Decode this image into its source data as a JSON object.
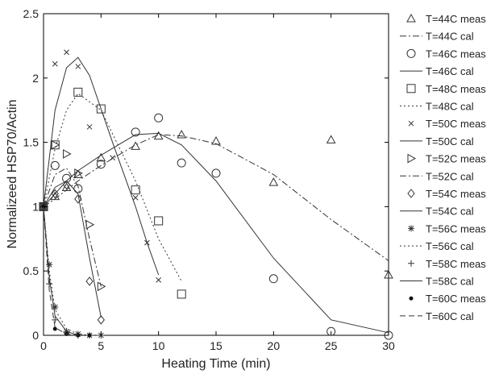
{
  "chart_data": {
    "type": "line",
    "title": "",
    "xlabel": "Heating Time (min)",
    "ylabel": "Normalizeed HSP70/Actin",
    "xlim": [
      0,
      30
    ],
    "ylim": [
      0,
      2.5
    ],
    "xticks": [
      0,
      5,
      10,
      15,
      20,
      25,
      30
    ],
    "yticks": [
      0,
      0.5,
      1,
      1.5,
      2,
      2.5
    ],
    "grid": false,
    "legend_position": "right-outside",
    "series": [
      {
        "name": "T=44C meas",
        "kind": "meas",
        "marker": "triangle",
        "x": [
          0,
          1,
          2,
          3,
          5,
          8,
          10,
          12,
          15,
          20,
          25,
          30
        ],
        "y": [
          1.0,
          1.08,
          1.15,
          1.25,
          1.38,
          1.47,
          1.55,
          1.56,
          1.51,
          1.19,
          1.52,
          0.47
        ]
      },
      {
        "name": "T=44C cal",
        "kind": "cal",
        "dash": "dashdot",
        "x": [
          0,
          1,
          2,
          3,
          5,
          8,
          10,
          12,
          15,
          20,
          25,
          30
        ],
        "y": [
          1.0,
          1.06,
          1.13,
          1.2,
          1.32,
          1.48,
          1.56,
          1.55,
          1.49,
          1.25,
          0.9,
          0.58
        ]
      },
      {
        "name": "T=46C meas",
        "kind": "meas",
        "marker": "circle",
        "x": [
          0,
          1,
          2,
          3,
          5,
          8,
          10,
          12,
          15,
          20,
          25,
          30
        ],
        "y": [
          1.0,
          1.32,
          1.22,
          1.14,
          1.33,
          1.58,
          1.69,
          1.34,
          1.26,
          0.44,
          0.03,
          0.0
        ]
      },
      {
        "name": "T=46C cal",
        "kind": "cal",
        "dash": "solid",
        "x": [
          0,
          1,
          2,
          3,
          5,
          8,
          10,
          12,
          15,
          20,
          25,
          30
        ],
        "y": [
          1.0,
          1.1,
          1.2,
          1.28,
          1.4,
          1.56,
          1.57,
          1.48,
          1.2,
          0.6,
          0.12,
          0.02
        ]
      },
      {
        "name": "T=48C meas",
        "kind": "meas",
        "marker": "square",
        "x": [
          0,
          1,
          3,
          5,
          8,
          10,
          12
        ],
        "y": [
          1.0,
          1.48,
          1.89,
          1.76,
          1.13,
          0.89,
          0.32
        ]
      },
      {
        "name": "T=48C cal",
        "kind": "cal",
        "dash": "dotted",
        "x": [
          0,
          1,
          2,
          3,
          5,
          8,
          10,
          12
        ],
        "y": [
          1.0,
          1.45,
          1.75,
          1.88,
          1.75,
          1.2,
          0.75,
          0.42
        ]
      },
      {
        "name": "T=50C meas",
        "kind": "meas",
        "marker": "x",
        "x": [
          0,
          1,
          2,
          3,
          4,
          6,
          8,
          9,
          10
        ],
        "y": [
          1.0,
          2.11,
          2.2,
          2.09,
          1.62,
          1.38,
          1.07,
          0.72,
          0.43
        ]
      },
      {
        "name": "T=50C cal",
        "kind": "cal",
        "dash": "solid",
        "x": [
          0,
          1,
          2,
          3,
          4,
          6,
          8,
          9,
          10
        ],
        "y": [
          1.0,
          1.75,
          2.08,
          2.16,
          2.02,
          1.5,
          1.0,
          0.72,
          0.47
        ]
      },
      {
        "name": "T=52C meas",
        "kind": "meas",
        "marker": "triangle-right",
        "x": [
          0,
          1,
          2,
          3,
          4,
          5
        ],
        "y": [
          1.0,
          1.48,
          1.41,
          1.26,
          0.86,
          0.38
        ]
      },
      {
        "name": "T=52C cal",
        "kind": "cal",
        "dash": "dashdot",
        "x": [
          0,
          1,
          2,
          3,
          4,
          5
        ],
        "y": [
          1.0,
          1.25,
          1.3,
          1.16,
          0.75,
          0.38
        ]
      },
      {
        "name": "T=54C meas",
        "kind": "meas",
        "marker": "diamond",
        "x": [
          0,
          1,
          2,
          3,
          4,
          5
        ],
        "y": [
          1.0,
          1.1,
          1.17,
          1.06,
          0.42,
          0.12
        ]
      },
      {
        "name": "T=54C cal",
        "kind": "cal",
        "dash": "solid",
        "x": [
          0,
          1,
          2,
          3,
          4,
          5
        ],
        "y": [
          1.0,
          1.15,
          1.2,
          1.1,
          0.6,
          0.14
        ]
      },
      {
        "name": "T=56C meas",
        "kind": "meas",
        "marker": "asterisk",
        "x": [
          0,
          0.5,
          1,
          2,
          3,
          4,
          5
        ],
        "y": [
          1.0,
          0.55,
          0.22,
          0.03,
          0.01,
          0.0,
          0.0
        ]
      },
      {
        "name": "T=56C cal",
        "kind": "cal",
        "dash": "dotted",
        "x": [
          0,
          0.5,
          1,
          2,
          3,
          4,
          5
        ],
        "y": [
          1.0,
          0.5,
          0.2,
          0.05,
          0.01,
          0.0,
          0.0
        ]
      },
      {
        "name": "T=58C meas",
        "kind": "meas",
        "marker": "plus",
        "x": [
          0,
          0.5,
          1,
          2,
          3
        ],
        "y": [
          1.0,
          0.4,
          0.12,
          0.02,
          0.0
        ]
      },
      {
        "name": "T=58C cal",
        "kind": "cal",
        "dash": "solid",
        "x": [
          0,
          0.5,
          1,
          2,
          3
        ],
        "y": [
          1.0,
          0.45,
          0.15,
          0.03,
          0.0
        ]
      },
      {
        "name": "T=60C meas",
        "kind": "meas",
        "marker": "dot",
        "x": [
          0,
          1,
          2,
          3,
          4
        ],
        "y": [
          1.0,
          0.05,
          0.01,
          0.0,
          0.0
        ]
      },
      {
        "name": "T=60C cal",
        "kind": "cal",
        "dash": "dashed",
        "x": [
          0,
          0.5,
          1,
          2,
          3
        ],
        "y": [
          1.0,
          0.35,
          0.06,
          0.01,
          0.0
        ]
      }
    ]
  }
}
